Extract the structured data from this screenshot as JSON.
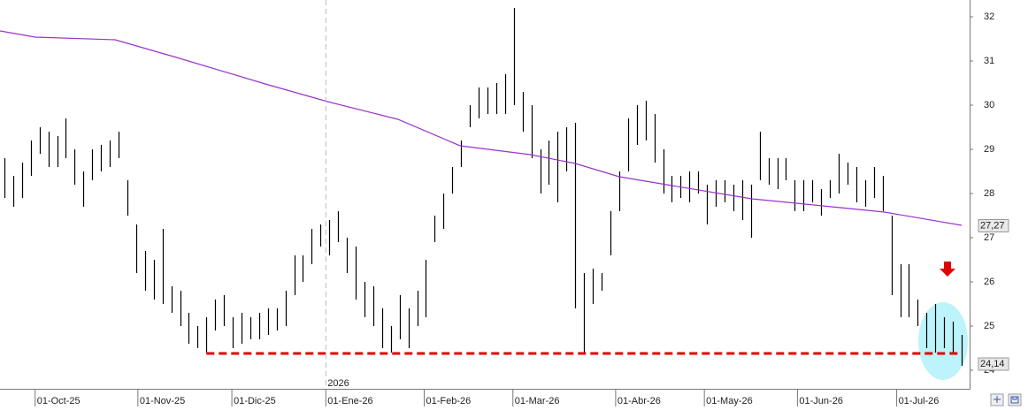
{
  "chart_data": {
    "type": "hilo",
    "color": "#000000",
    "high": [
      28.8,
      28.4,
      28.7,
      29.2,
      29.5,
      29.4,
      29.3,
      29.7,
      29.0,
      28.5,
      29.0,
      29.1,
      29.2,
      29.4,
      28.3,
      27.3,
      26.7,
      26.5,
      27.2,
      25.9,
      25.8,
      25.3,
      25.0,
      25.2,
      25.6,
      25.7,
      25.2,
      25.3,
      25.2,
      25.3,
      25.4,
      25.4,
      25.8,
      26.6,
      26.6,
      27.2,
      27.3,
      27.4,
      27.6,
      27.0,
      26.8,
      26.0,
      25.9,
      25.4,
      25.0,
      25.7,
      25.4,
      25.8,
      26.5,
      27.5,
      28.0,
      28.6,
      29.2,
      30.0,
      30.4,
      30.4,
      30.5,
      30.7,
      32.2,
      30.3,
      30.0,
      29.0,
      29.2,
      29.4,
      29.5,
      29.6,
      26.2,
      26.3,
      26.2,
      27.6,
      28.5,
      29.7,
      30.0,
      30.1,
      29.8,
      29.0,
      28.4,
      28.4,
      28.5,
      28.5,
      28.2,
      28.3,
      28.3,
      28.2,
      28.3,
      28.2,
      29.4,
      28.8,
      28.8,
      28.8,
      28.3,
      28.3,
      28.3,
      28.1,
      28.3,
      28.9,
      28.7,
      28.6,
      28.3,
      28.6,
      28.4,
      27.5,
      26.4,
      26.4,
      25.6,
      25.3,
      25.5,
      25.2,
      25.1,
      24.8
    ],
    "low": [
      27.9,
      27.7,
      27.9,
      28.4,
      28.9,
      28.6,
      28.6,
      28.8,
      28.2,
      27.7,
      28.3,
      28.5,
      28.6,
      28.8,
      27.5,
      26.2,
      25.8,
      25.6,
      25.5,
      25.3,
      25.0,
      24.6,
      24.5,
      24.4,
      24.9,
      25.0,
      24.5,
      24.6,
      24.7,
      24.7,
      24.8,
      24.9,
      25.0,
      25.7,
      26.0,
      26.4,
      26.8,
      26.6,
      26.9,
      26.2,
      25.6,
      25.2,
      25.0,
      24.5,
      24.4,
      24.7,
      24.5,
      25.0,
      25.2,
      26.9,
      27.2,
      28.0,
      28.6,
      29.5,
      29.7,
      29.8,
      29.8,
      29.8,
      30.0,
      29.4,
      28.8,
      28.0,
      28.2,
      27.8,
      28.5,
      25.4,
      24.4,
      25.5,
      25.8,
      26.6,
      27.6,
      28.5,
      29.1,
      29.2,
      28.7,
      28.0,
      27.8,
      27.9,
      27.8,
      28.0,
      27.3,
      27.7,
      27.8,
      27.6,
      27.4,
      27.0,
      28.3,
      28.2,
      28.1,
      28.3,
      27.6,
      27.6,
      27.8,
      27.5,
      27.9,
      28.0,
      28.2,
      27.8,
      27.7,
      27.9,
      27.6,
      25.7,
      25.2,
      25.2,
      25.0,
      24.5,
      24.4,
      24.5,
      24.4,
      24.1
    ],
    "ma": {
      "color": "#9933cc",
      "x": [
        0,
        4,
        13.1,
        20.1,
        30.2,
        37.3,
        45.3,
        52.4,
        60.4,
        65.5,
        70.5,
        76.5,
        85.6,
        95.7,
        100.7,
        109.5
      ],
      "values": [
        31.68,
        31.54,
        31.48,
        31.08,
        30.48,
        30.08,
        29.68,
        29.08,
        28.88,
        28.68,
        28.38,
        28.18,
        27.88,
        27.68,
        27.58,
        27.28
      ]
    },
    "support": {
      "color": "#e00000",
      "value": 24.38,
      "x": [
        23.5,
        109.5
      ]
    },
    "price_labels": [
      {
        "value": 27.27,
        "label": "27,27"
      },
      {
        "value": 24.14,
        "label": "24,14"
      }
    ],
    "xlim": [
      0,
      110
    ],
    "xticks": [
      {
        "value": 4,
        "label": "01-Oct-25"
      },
      {
        "value": 15.7,
        "label": "01-Nov-25"
      },
      {
        "value": 26.4,
        "label": "01-Dic-25"
      },
      {
        "value": 37.1,
        "label": "01-Ene-26"
      },
      {
        "value": 48.3,
        "label": "01-Feb-26"
      },
      {
        "value": 58.4,
        "label": "01-Mar-26"
      },
      {
        "value": 70.1,
        "label": "01-Abr-26"
      },
      {
        "value": 80.2,
        "label": "01-May-26"
      },
      {
        "value": 90.8,
        "label": "01-Jun-26"
      },
      {
        "value": 102.1,
        "label": "01-Jul-26"
      }
    ],
    "year_label": {
      "value": 37.1,
      "label": "2026"
    },
    "ylim": [
      23.58,
      32.38
    ],
    "yticks": [
      24,
      25,
      26,
      27,
      28,
      29,
      30,
      31,
      32
    ]
  }
}
